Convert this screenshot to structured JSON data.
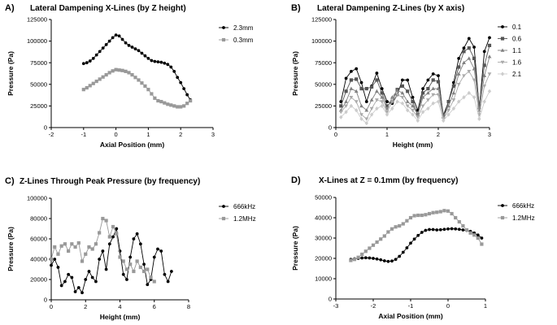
{
  "chart_data": [
    {
      "type": "line",
      "panel_label": "A)",
      "title": "Lateral Dampening X-Lines (by Z height)",
      "xlabel": "Axial Position (mm)",
      "ylabel": "Pressure (Pa)",
      "xlim": [
        -2,
        3
      ],
      "ylim": [
        0,
        125000
      ],
      "xticks": [
        -2,
        -1,
        0,
        1,
        2,
        3
      ],
      "yticks": [
        0,
        25000,
        50000,
        75000,
        100000,
        125000
      ],
      "xtick_labels": [
        "-2",
        "-1",
        "0",
        "1",
        "2",
        "3"
      ],
      "ytick_labels": [
        "0",
        "25000",
        "50000",
        "75000",
        "100000",
        "125000"
      ],
      "series": [
        {
          "name": "2.3mm",
          "color": "#000000",
          "marker": "circle",
          "x": [
            -1.0,
            -0.9,
            -0.8,
            -0.7,
            -0.6,
            -0.5,
            -0.4,
            -0.3,
            -0.2,
            -0.1,
            0.0,
            0.1,
            0.2,
            0.3,
            0.4,
            0.5,
            0.6,
            0.7,
            0.8,
            0.9,
            1.0,
            1.1,
            1.2,
            1.3,
            1.4,
            1.5,
            1.6,
            1.7,
            1.8,
            1.9,
            2.0,
            2.1,
            2.2,
            2.3
          ],
          "y": [
            74000,
            75000,
            77000,
            80000,
            84000,
            88000,
            92000,
            96000,
            100000,
            104000,
            107000,
            106000,
            102000,
            98000,
            95000,
            93000,
            91000,
            89000,
            86000,
            83000,
            80000,
            77500,
            76500,
            76000,
            75500,
            74500,
            73000,
            70000,
            65000,
            58000,
            52000,
            45000,
            38000,
            32000
          ]
        },
        {
          "name": "0.3mm",
          "color": "#999999",
          "marker": "square",
          "x": [
            -1.0,
            -0.9,
            -0.8,
            -0.7,
            -0.6,
            -0.5,
            -0.4,
            -0.3,
            -0.2,
            -0.1,
            0.0,
            0.1,
            0.2,
            0.3,
            0.4,
            0.5,
            0.6,
            0.7,
            0.8,
            0.9,
            1.0,
            1.1,
            1.2,
            1.3,
            1.4,
            1.5,
            1.6,
            1.7,
            1.8,
            1.9,
            2.0,
            2.1,
            2.2,
            2.3
          ],
          "y": [
            44000,
            46000,
            48500,
            51000,
            53500,
            56000,
            58500,
            61000,
            63500,
            65500,
            67000,
            66500,
            66000,
            65000,
            63500,
            61000,
            58000,
            55000,
            51500,
            48000,
            44000,
            39000,
            34000,
            31000,
            30000,
            28500,
            27000,
            26000,
            25000,
            24000,
            24000,
            25000,
            28000,
            31000
          ]
        }
      ],
      "legend": "right"
    },
    {
      "type": "line",
      "panel_label": "B)",
      "title": "Lateral Dampening Z-Lines (by X axis)",
      "xlabel": "Height (mm)",
      "ylabel": "Pressure (Pa)",
      "xlim": [
        0,
        3
      ],
      "ylim": [
        0,
        125000
      ],
      "xticks": [
        0,
        1,
        2,
        3
      ],
      "yticks": [
        0,
        25000,
        50000,
        75000,
        100000,
        125000
      ],
      "xtick_labels": [
        "0",
        "1",
        "2",
        "3"
      ],
      "ytick_labels": [
        "0",
        "25000",
        "50000",
        "75000",
        "100000",
        "125000"
      ],
      "series": [
        {
          "name": "0.1",
          "color": "#000000",
          "marker": "circle",
          "x": [
            0.1,
            0.2,
            0.3,
            0.4,
            0.5,
            0.6,
            0.7,
            0.8,
            0.9,
            1.0,
            1.1,
            1.2,
            1.3,
            1.4,
            1.5,
            1.6,
            1.7,
            1.8,
            1.9,
            2.0,
            2.1,
            2.2,
            2.3,
            2.4,
            2.5,
            2.6,
            2.7,
            2.8,
            2.9,
            3.0
          ],
          "y": [
            30000,
            57000,
            65000,
            68000,
            52000,
            30000,
            48000,
            63000,
            45000,
            30000,
            28000,
            38000,
            55000,
            55000,
            35000,
            20000,
            45000,
            55000,
            62000,
            60000,
            12000,
            30000,
            52000,
            80000,
            92000,
            103000,
            93000,
            22000,
            88000,
            104000
          ]
        },
        {
          "name": "0.6",
          "color": "#555555",
          "marker": "square",
          "x": [
            0.1,
            0.2,
            0.3,
            0.4,
            0.5,
            0.6,
            0.7,
            0.8,
            0.9,
            1.0,
            1.1,
            1.2,
            1.3,
            1.4,
            1.5,
            1.6,
            1.7,
            1.8,
            1.9,
            2.0,
            2.1,
            2.2,
            2.3,
            2.4,
            2.5,
            2.6,
            2.7,
            2.8,
            2.9,
            3.0
          ],
          "y": [
            25000,
            42000,
            55000,
            56000,
            45000,
            45000,
            47000,
            55000,
            40000,
            25000,
            30000,
            44000,
            48000,
            42000,
            30000,
            15000,
            40000,
            45000,
            55000,
            53000,
            15000,
            30000,
            48000,
            70000,
            88000,
            92000,
            80000,
            25000,
            72000,
            95000
          ]
        },
        {
          "name": "1.1",
          "color": "#808080",
          "marker": "triangle",
          "x": [
            0.1,
            0.2,
            0.3,
            0.4,
            0.5,
            0.6,
            0.7,
            0.8,
            0.9,
            1.0,
            1.1,
            1.2,
            1.3,
            1.4,
            1.5,
            1.6,
            1.7,
            1.8,
            1.9,
            2.0,
            2.1,
            2.2,
            2.3,
            2.4,
            2.5,
            2.6,
            2.7,
            2.8,
            2.9,
            3.0
          ],
          "y": [
            20000,
            30000,
            45000,
            42000,
            25000,
            20000,
            32000,
            42000,
            35000,
            22000,
            35000,
            43000,
            40000,
            30000,
            25000,
            15000,
            35000,
            40000,
            45000,
            45000,
            12000,
            25000,
            40000,
            62000,
            75000,
            80000,
            68000,
            20000,
            60000,
            82000
          ]
        },
        {
          "name": "1.6",
          "color": "#aaaaaa",
          "marker": "triangle-down",
          "x": [
            0.1,
            0.2,
            0.3,
            0.4,
            0.5,
            0.6,
            0.7,
            0.8,
            0.9,
            1.0,
            1.1,
            1.2,
            1.3,
            1.4,
            1.5,
            1.6,
            1.7,
            1.8,
            1.9,
            2.0,
            2.1,
            2.2,
            2.3,
            2.4,
            2.5,
            2.6,
            2.7,
            2.8,
            2.9,
            3.0
          ],
          "y": [
            18000,
            25000,
            35000,
            30000,
            15000,
            10000,
            22000,
            32000,
            30000,
            18000,
            30000,
            38000,
            35000,
            25000,
            20000,
            12000,
            25000,
            32000,
            38000,
            38000,
            10000,
            20000,
            32000,
            50000,
            60000,
            65000,
            55000,
            15000,
            48000,
            62000
          ]
        },
        {
          "name": "2.1",
          "color": "#cccccc",
          "marker": "diamond",
          "x": [
            0.1,
            0.2,
            0.3,
            0.4,
            0.5,
            0.6,
            0.7,
            0.8,
            0.9,
            1.0,
            1.1,
            1.2,
            1.3,
            1.4,
            1.5,
            1.6,
            1.7,
            1.8,
            1.9,
            2.0,
            2.1,
            2.2,
            2.3,
            2.4,
            2.5,
            2.6,
            2.7,
            2.8,
            2.9,
            3.0
          ],
          "y": [
            12000,
            18000,
            25000,
            20000,
            10000,
            5000,
            15000,
            22000,
            25000,
            15000,
            22000,
            30000,
            28000,
            20000,
            15000,
            8000,
            18000,
            22000,
            28000,
            30000,
            8000,
            15000,
            22000,
            30000,
            35000,
            40000,
            35000,
            10000,
            30000,
            42000
          ]
        }
      ],
      "legend": "right"
    },
    {
      "type": "line",
      "panel_label": "C)",
      "title": "Z-Lines Through Peak Pressure (by frequency)",
      "xlabel": "Height (mm)",
      "ylabel": "Pressure (Pa)",
      "xlim": [
        0,
        8
      ],
      "ylim": [
        0,
        100000
      ],
      "xticks": [
        0,
        2,
        4,
        6,
        8
      ],
      "yticks": [
        0,
        20000,
        40000,
        60000,
        80000,
        100000
      ],
      "xtick_labels": [
        "0",
        "2",
        "4",
        "6",
        "8"
      ],
      "ytick_labels": [
        "0",
        "20000",
        "40000",
        "60000",
        "80000",
        "100000"
      ],
      "series": [
        {
          "name": "666kHz",
          "color": "#000000",
          "marker": "circle",
          "x": [
            0.0,
            0.2,
            0.4,
            0.6,
            0.8,
            1.0,
            1.2,
            1.4,
            1.6,
            1.8,
            2.0,
            2.2,
            2.4,
            2.6,
            2.8,
            3.0,
            3.2,
            3.4,
            3.6,
            3.8,
            4.0,
            4.2,
            4.4,
            4.6,
            4.8,
            5.0,
            5.2,
            5.4,
            5.6,
            5.8,
            6.0,
            6.2,
            6.4,
            6.6,
            6.8,
            7.0
          ],
          "y": [
            34000,
            40000,
            32000,
            14000,
            18000,
            25000,
            22000,
            8000,
            12000,
            7000,
            20000,
            28000,
            22000,
            18000,
            40000,
            48000,
            30000,
            55000,
            62000,
            70000,
            48000,
            25000,
            20000,
            42000,
            60000,
            65000,
            55000,
            35000,
            15000,
            20000,
            42000,
            50000,
            48000,
            25000,
            18000,
            28000
          ]
        },
        {
          "name": "1.2MHz",
          "color": "#999999",
          "marker": "square",
          "x": [
            0.0,
            0.2,
            0.4,
            0.6,
            0.8,
            1.0,
            1.2,
            1.4,
            1.6,
            1.8,
            2.0,
            2.2,
            2.4,
            2.6,
            2.8,
            3.0,
            3.2,
            3.4,
            3.6,
            3.8,
            4.0,
            4.2,
            4.4,
            4.6,
            4.8,
            5.0,
            5.2,
            5.4,
            5.6,
            5.8,
            6.0
          ],
          "y": [
            40000,
            52000,
            45000,
            53000,
            55000,
            48000,
            55000,
            52000,
            56000,
            38000,
            45000,
            52000,
            50000,
            55000,
            66000,
            80000,
            78000,
            62000,
            72000,
            65000,
            42000,
            38000,
            30000,
            35000,
            28000,
            38000,
            32000,
            28000,
            30000,
            22000,
            18000
          ]
        }
      ],
      "legend": "right"
    },
    {
      "type": "line",
      "panel_label": "D)",
      "title": "X-Lines at Z = 0.1mm (by frequency)",
      "xlabel": "Axial Position (mm)",
      "ylabel": "Pressure (Pa)",
      "xlim": [
        -3,
        1
      ],
      "ylim": [
        0,
        50000
      ],
      "xticks": [
        -3,
        -2,
        -1,
        0,
        1
      ],
      "yticks": [
        0,
        10000,
        20000,
        30000,
        40000,
        50000
      ],
      "xtick_labels": [
        "-3",
        "-2",
        "-1",
        "0",
        "1"
      ],
      "ytick_labels": [
        "0",
        "10000",
        "20000",
        "30000",
        "40000",
        "50000"
      ],
      "series": [
        {
          "name": "666kHz",
          "color": "#000000",
          "marker": "circle",
          "x": [
            -2.6,
            -2.5,
            -2.4,
            -2.3,
            -2.2,
            -2.1,
            -2.0,
            -1.9,
            -1.8,
            -1.7,
            -1.6,
            -1.5,
            -1.4,
            -1.3,
            -1.2,
            -1.1,
            -1.0,
            -0.9,
            -0.8,
            -0.7,
            -0.6,
            -0.5,
            -0.4,
            -0.3,
            -0.2,
            -0.1,
            0.0,
            0.1,
            0.2,
            0.3,
            0.4,
            0.5,
            0.6,
            0.7,
            0.8,
            0.9
          ],
          "y": [
            19500,
            19800,
            20000,
            20200,
            20300,
            20200,
            20000,
            19700,
            19300,
            18800,
            18500,
            18700,
            19500,
            21000,
            23000,
            25200,
            27500,
            29500,
            31300,
            32800,
            33800,
            34200,
            34200,
            34000,
            34100,
            34300,
            34500,
            34600,
            34500,
            34300,
            34000,
            33800,
            33300,
            32500,
            31500,
            30000
          ]
        },
        {
          "name": "1.2MHz",
          "color": "#999999",
          "marker": "square",
          "x": [
            -2.6,
            -2.5,
            -2.4,
            -2.3,
            -2.2,
            -2.1,
            -2.0,
            -1.9,
            -1.8,
            -1.7,
            -1.6,
            -1.5,
            -1.4,
            -1.3,
            -1.2,
            -1.1,
            -1.0,
            -0.9,
            -0.8,
            -0.7,
            -0.6,
            -0.5,
            -0.4,
            -0.3,
            -0.2,
            -0.1,
            0.0,
            0.1,
            0.2,
            0.3,
            0.4,
            0.5,
            0.6,
            0.7,
            0.8,
            0.9
          ],
          "y": [
            19000,
            19500,
            20500,
            22000,
            23500,
            25000,
            26500,
            28000,
            29500,
            31000,
            33000,
            34500,
            35500,
            36000,
            37000,
            38500,
            40000,
            41000,
            41200,
            41200,
            41500,
            42000,
            42500,
            42700,
            43000,
            43500,
            43300,
            42000,
            40000,
            38000,
            36000,
            34000,
            32500,
            31500,
            30000,
            27000
          ]
        }
      ],
      "legend": "right"
    }
  ]
}
